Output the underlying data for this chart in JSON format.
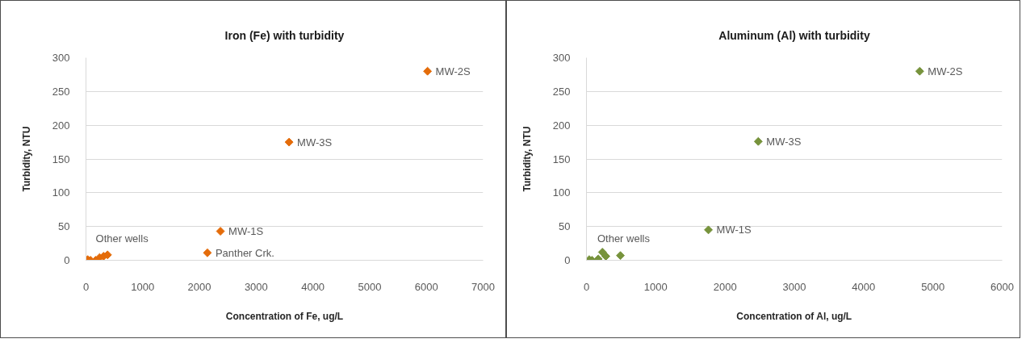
{
  "chart_data": [
    {
      "type": "scatter",
      "title": "Iron (Fe) with turbidity",
      "xlabel": "Concentration of Fe, ug/L",
      "ylabel": "Turbidity, NTU",
      "xlim": [
        0,
        7000
      ],
      "ylim": [
        0,
        300
      ],
      "xticks": [
        0,
        1000,
        2000,
        3000,
        4000,
        5000,
        6000,
        7000
      ],
      "yticks": [
        0,
        50,
        100,
        150,
        200,
        250,
        300
      ],
      "grid": "y",
      "marker": "diamond",
      "series": [
        {
          "color": "#e46c0a",
          "x": [
            30,
            80,
            240,
            310,
            380,
            170,
            2140,
            2370,
            3580,
            6020
          ],
          "values": [
            1,
            0,
            4,
            6,
            8,
            0,
            11,
            43,
            175,
            280
          ]
        }
      ],
      "annotations": [
        {
          "text": "MW-2S",
          "x": 6020,
          "y": 280
        },
        {
          "text": "MW-3S",
          "x": 3580,
          "y": 175
        },
        {
          "text": "MW-1S",
          "x": 2370,
          "y": 43
        },
        {
          "text": "Panther Crk.",
          "x": 2140,
          "y": 11
        },
        "Other  wells"
      ]
    },
    {
      "type": "scatter",
      "title": "Aluminum (Al) with turbidity",
      "xlabel": "Concentration of Al, ug/L",
      "ylabel": "Turbidity, NTU",
      "xlim": [
        0,
        6000
      ],
      "ylim": [
        0,
        300
      ],
      "xticks": [
        0,
        1000,
        2000,
        3000,
        4000,
        5000,
        6000
      ],
      "yticks": [
        0,
        50,
        100,
        150,
        200,
        250,
        300
      ],
      "grid": "y",
      "marker": "diamond",
      "series": [
        {
          "color": "#77933c",
          "x": [
            40,
            80,
            170,
            230,
            280,
            490,
            1760,
            2480,
            4810
          ],
          "values": [
            1,
            0,
            2,
            12,
            6,
            7,
            45,
            176,
            280
          ]
        }
      ],
      "annotations": [
        {
          "text": "MW-2S",
          "x": 4810,
          "y": 280
        },
        {
          "text": "MW-3S",
          "x": 2480,
          "y": 176
        },
        {
          "text": "MW-1S",
          "x": 1760,
          "y": 45
        },
        "Other wells"
      ]
    }
  ]
}
